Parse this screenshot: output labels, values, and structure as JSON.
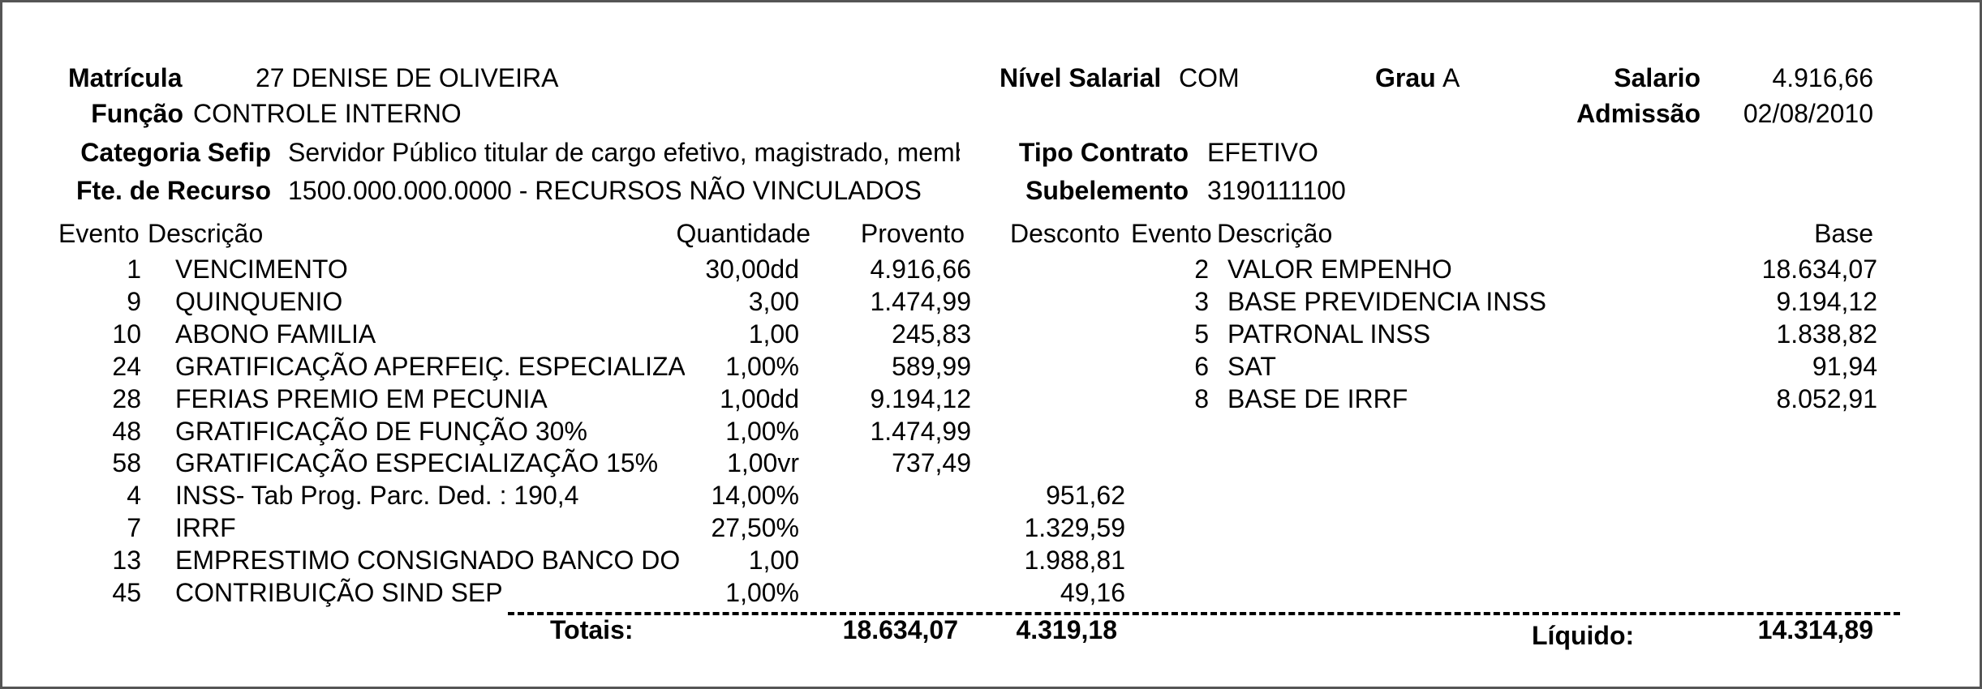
{
  "header": {
    "matricula_label": "Matrícula",
    "matricula_value": "27 DENISE DE OLIVEIRA",
    "funcao_label": "Função",
    "funcao_value": "CONTROLE INTERNO",
    "categoria_label": "Categoria Sefip",
    "categoria_value": "Servidor Público titular de cargo efetivo, magistrado, membro",
    "fonte_label": "Fte. de Recurso",
    "fonte_value": "1500.000.000.0000 - RECURSOS NÃO VINCULADOS",
    "nivel_label": "Nível Salarial",
    "nivel_value": "COM",
    "grau_label": "Grau",
    "grau_value": "A",
    "salario_label": "Salario",
    "salario_value": "4.916,66",
    "admissao_label": "Admissão",
    "admissao_value": "02/08/2010",
    "tipo_label": "Tipo Contrato",
    "tipo_value": "EFETIVO",
    "subelemento_label": "Subelemento",
    "subelemento_value": "3190111100"
  },
  "columns": {
    "evento": "Evento",
    "descricao": "Descrição",
    "quantidade": "Quantidade",
    "provento": "Provento",
    "desconto": "Desconto",
    "evento2": "Evento",
    "descricao2": "Descrição",
    "base": "Base"
  },
  "events": [
    {
      "code": "1",
      "desc": "VENCIMENTO",
      "qty": "30,00dd",
      "provento": "4.916,66",
      "desconto": ""
    },
    {
      "code": "9",
      "desc": "QUINQUENIO",
      "qty": "3,00",
      "provento": "1.474,99",
      "desconto": ""
    },
    {
      "code": "10",
      "desc": "ABONO FAMILIA",
      "qty": "1,00",
      "provento": "245,83",
      "desconto": ""
    },
    {
      "code": "24",
      "desc": "GRATIFICAÇÃO APERFEIÇ. ESPECIALIZAÇÃO",
      "qty": "1,00%",
      "provento": "589,99",
      "desconto": ""
    },
    {
      "code": "28",
      "desc": "FERIAS PREMIO EM PECUNIA",
      "qty": "1,00dd",
      "provento": "9.194,12",
      "desconto": ""
    },
    {
      "code": "48",
      "desc": "GRATIFICAÇÃO DE FUNÇÃO 30%",
      "qty": "1,00%",
      "provento": "1.474,99",
      "desconto": ""
    },
    {
      "code": "58",
      "desc": "GRATIFICAÇÃO ESPECIALIZAÇÃO 15%",
      "qty": "1,00vr",
      "provento": "737,49",
      "desconto": ""
    },
    {
      "code": "4",
      "desc": "INSS- Tab Prog. Parc. Ded. : 190,4",
      "qty": "14,00%",
      "provento": "",
      "desconto": "951,62"
    },
    {
      "code": "7",
      "desc": "IRRF",
      "qty": "27,50%",
      "provento": "",
      "desconto": "1.329,59"
    },
    {
      "code": "13",
      "desc": "EMPRESTIMO CONSIGNADO BANCO DO BRASIL",
      "qty": "1,00",
      "provento": "",
      "desconto": "1.988,81"
    },
    {
      "code": "45",
      "desc": "CONTRIBUIÇÃO SIND SEP",
      "qty": "1,00%",
      "provento": "",
      "desconto": "49,16"
    }
  ],
  "bases": [
    {
      "code": "2",
      "desc": "VALOR EMPENHO",
      "base": "18.634,07"
    },
    {
      "code": "3",
      "desc": "BASE PREVIDENCIA INSS",
      "base": "9.194,12"
    },
    {
      "code": "5",
      "desc": "PATRONAL INSS",
      "base": "1.838,82"
    },
    {
      "code": "6",
      "desc": "SAT",
      "base": "91,94"
    },
    {
      "code": "8",
      "desc": "BASE DE IRRF",
      "base": "8.052,91"
    }
  ],
  "totals": {
    "label": "Totais:",
    "proventos": "18.634,07",
    "descontos": "4.319,18",
    "liquido_label": "Líquido:",
    "liquido": "14.314,89"
  }
}
